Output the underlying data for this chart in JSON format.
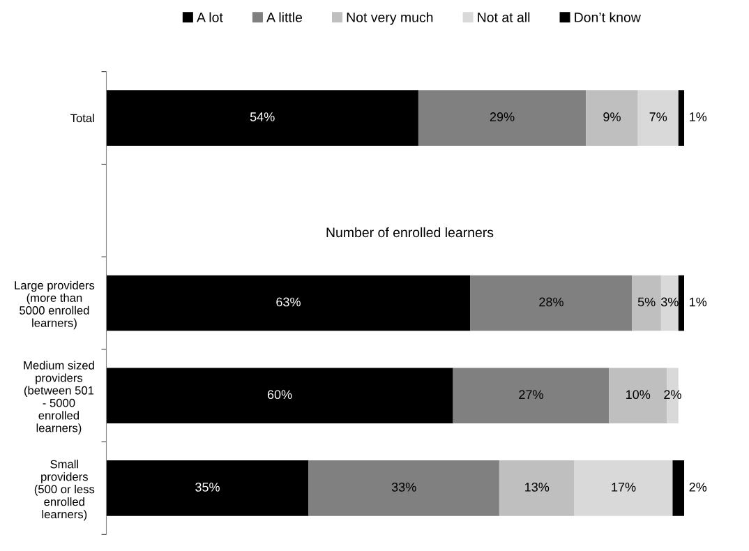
{
  "chart_data": {
    "type": "bar",
    "orientation": "horizontal",
    "stacked": true,
    "legend": "top",
    "grid": false,
    "categories": [
      "Total",
      null,
      "Large providers\n(more than\n5000 enrolled\nlearners)",
      "Medium sized\nproviders\n(between 501\n- 5000\nenrolled\nlearners)",
      "Small\nproviders\n(500 or less\nenrolled\nlearners)"
    ],
    "series": [
      {
        "name": "A lot",
        "color": "#000000",
        "values": [
          54,
          null,
          63,
          60,
          35
        ],
        "value_labels": [
          "54%",
          null,
          "63%",
          "60%",
          "35%"
        ]
      },
      {
        "name": "A little",
        "color": "#808080",
        "values": [
          29,
          null,
          28,
          27,
          33
        ],
        "value_labels": [
          "29%",
          null,
          "28%",
          "27%",
          "33%"
        ]
      },
      {
        "name": "Not very much",
        "color": "#bfbfbf",
        "values": [
          9,
          null,
          5,
          10,
          13
        ],
        "value_labels": [
          "9%",
          null,
          "5%",
          "10%",
          "13%"
        ]
      },
      {
        "name": "Not at all",
        "color": "#d9d9d9",
        "values": [
          7,
          null,
          3,
          2,
          17
        ],
        "value_labels": [
          "7%",
          null,
          "3%",
          "2%",
          "17%"
        ]
      },
      {
        "name": "Don’t know",
        "color": "#000000",
        "values": [
          1,
          null,
          1,
          null,
          2
        ],
        "value_labels": [
          "1%",
          null,
          "1%",
          null,
          "2%"
        ]
      }
    ],
    "annotations": [
      "Number of enrolled learners"
    ]
  }
}
